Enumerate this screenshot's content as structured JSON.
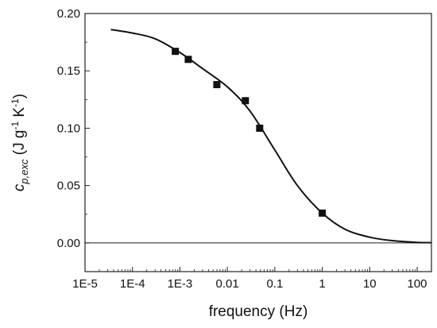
{
  "chart_data": {
    "type": "scatter",
    "xscale": "log",
    "xlim": [
      1e-05,
      200
    ],
    "ylim": [
      -0.025,
      0.2
    ],
    "x_ticks": [
      {
        "value": 1e-05,
        "label": "1E-5"
      },
      {
        "value": 0.0001,
        "label": "1E-4"
      },
      {
        "value": 0.001,
        "label": "1E-3"
      },
      {
        "value": 0.01,
        "label": "0.01"
      },
      {
        "value": 0.1,
        "label": "0.1"
      },
      {
        "value": 1,
        "label": "1"
      },
      {
        "value": 10,
        "label": "10"
      },
      {
        "value": 100,
        "label": "100"
      }
    ],
    "y_ticks": [
      {
        "value": 0.0,
        "label": "0.00"
      },
      {
        "value": 0.05,
        "label": "0.05"
      },
      {
        "value": 0.1,
        "label": "0.10"
      },
      {
        "value": 0.15,
        "label": "0.15"
      },
      {
        "value": 0.2,
        "label": "0.20"
      }
    ],
    "xlabel": "frequency (Hz)",
    "ylabel": {
      "main": "c",
      "sub": "p,exc",
      "units_open": " (J g",
      "sup1": "-1",
      "units_mid": " K",
      "sup2": "-1",
      "units_close": ")"
    },
    "zero_line": 0,
    "grid": false,
    "series": [
      {
        "kind": "markers",
        "marker": "square",
        "color": "#111111",
        "x": [
          0.0008,
          0.0015,
          0.006,
          0.024,
          0.048,
          1.0
        ],
        "y": [
          0.167,
          0.16,
          0.138,
          0.124,
          0.1,
          0.026
        ]
      },
      {
        "kind": "line",
        "color": "#111111",
        "x": [
          3.5e-05,
          0.0001,
          0.0003,
          0.001,
          0.003,
          0.01,
          0.03,
          0.1,
          0.3,
          1,
          3,
          10,
          30,
          100,
          200
        ],
        "y": [
          0.186,
          0.183,
          0.178,
          0.166,
          0.152,
          0.136,
          0.115,
          0.081,
          0.05,
          0.026,
          0.012,
          0.005,
          0.002,
          0.0005,
          0.0002
        ]
      }
    ]
  }
}
